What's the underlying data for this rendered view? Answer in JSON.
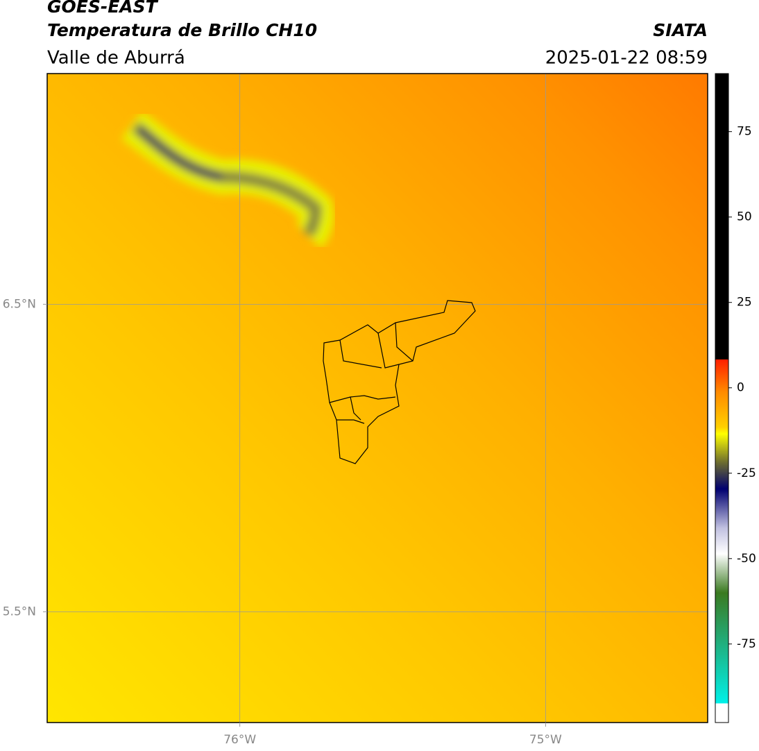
{
  "header": {
    "title": "GOES-EAST",
    "subtitle": "Temperatura de Brillo CH10",
    "region": "Valle de Aburrá",
    "source": "SIATA",
    "datetime": "2025-01-22 08:59"
  },
  "map": {
    "lon_lim": [
      -76.63,
      -74.47
    ],
    "lat_lim": [
      5.14,
      7.25
    ],
    "lon_ticks": [
      {
        "value": -76,
        "label": "76°W"
      },
      {
        "value": -75,
        "label": "75°W"
      }
    ],
    "lat_ticks": [
      {
        "value": 5.5,
        "label": "5.5°N"
      },
      {
        "value": 6.5,
        "label": "6.5°N"
      }
    ],
    "grid": true
  },
  "colorbar": {
    "lim": [
      -98,
      92
    ],
    "ticks": [
      -75,
      -50,
      -25,
      0,
      25,
      50,
      75
    ]
  }
}
